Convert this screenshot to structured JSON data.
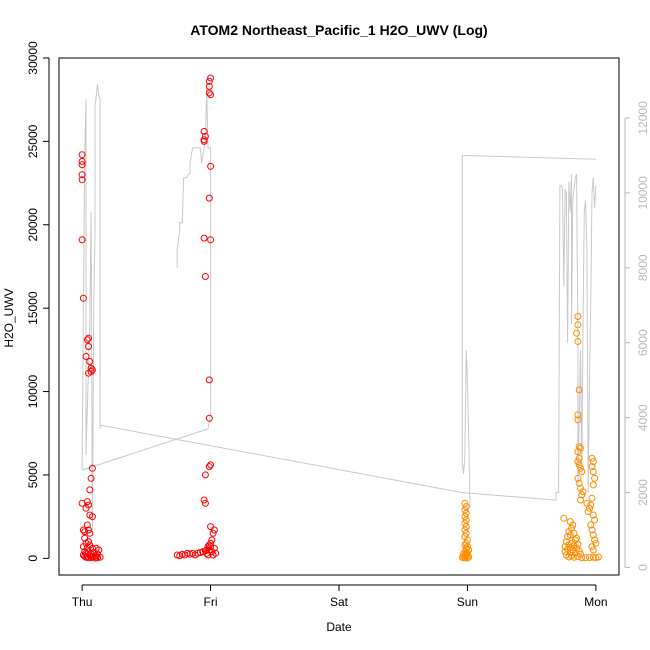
{
  "chart_data": {
    "type": "scatter",
    "title": "ATOM2 Northeast_Pacific_1 H2O_UWV (Log)",
    "xlabel": "Date",
    "ylabel": "H2O_UWV",
    "x_ticks": [
      {
        "label": "Thu",
        "day": 0
      },
      {
        "label": "Fri",
        "day": 1
      },
      {
        "label": "Sat",
        "day": 2
      },
      {
        "label": "Sun",
        "day": 3
      },
      {
        "label": "Mon",
        "day": 4
      }
    ],
    "xlim": [
      -0.18,
      4.18
    ],
    "ylim": [
      -1000,
      30000
    ],
    "y_ticks": [
      0,
      5000,
      10000,
      15000,
      20000,
      25000,
      30000
    ],
    "y2lim": [
      -200,
      13600
    ],
    "y2_ticks": [
      0,
      2000,
      4000,
      6000,
      8000,
      10000,
      12000
    ],
    "grid": false,
    "colors": {
      "red": "#ff0000",
      "orange": "#ff8c00",
      "secondary": "#c8c8c8",
      "axis": "#000000",
      "axis_right": "#b8b8b8"
    },
    "series": [
      {
        "color": "#ff0000",
        "points": [
          [
            0.0,
            24200
          ],
          [
            0.0,
            23800
          ],
          [
            0.0,
            23600
          ],
          [
            0.0,
            23000
          ],
          [
            0.0,
            22700
          ],
          [
            0.0,
            19100
          ],
          [
            0.01,
            15600
          ],
          [
            0.05,
            13200
          ],
          [
            0.04,
            13100
          ],
          [
            0.05,
            12700
          ],
          [
            0.03,
            12100
          ],
          [
            0.06,
            11800
          ],
          [
            0.07,
            11400
          ],
          [
            0.08,
            11300
          ],
          [
            0.07,
            11200
          ],
          [
            0.05,
            11100
          ],
          [
            0.08,
            5400
          ],
          [
            0.07,
            4800
          ],
          [
            0.06,
            4100
          ],
          [
            0.04,
            3400
          ],
          [
            0.05,
            3200
          ],
          [
            0.0,
            3300
          ],
          [
            0.03,
            3000
          ],
          [
            0.06,
            2600
          ],
          [
            0.08,
            2500
          ],
          [
            0.04,
            2000
          ],
          [
            0.05,
            1700
          ],
          [
            0.01,
            1700
          ],
          [
            0.02,
            1600
          ],
          [
            0.06,
            1500
          ],
          [
            0.02,
            1200
          ],
          [
            0.05,
            1000
          ],
          [
            0.03,
            900
          ],
          [
            0.06,
            800
          ],
          [
            0.01,
            700
          ],
          [
            0.04,
            600
          ],
          [
            0.08,
            600
          ],
          [
            0.11,
            600
          ],
          [
            0.13,
            500
          ],
          [
            0.02,
            400
          ],
          [
            0.05,
            400
          ],
          [
            0.09,
            350
          ],
          [
            0.03,
            300
          ],
          [
            0.07,
            250
          ],
          [
            0.12,
            250
          ],
          [
            0.01,
            200
          ],
          [
            0.06,
            180
          ],
          [
            0.1,
            150
          ],
          [
            0.02,
            120
          ],
          [
            0.04,
            100
          ],
          [
            0.08,
            90
          ],
          [
            0.11,
            80
          ],
          [
            0.14,
            70
          ],
          [
            0.03,
            60
          ],
          [
            0.07,
            50
          ],
          [
            0.12,
            40
          ],
          [
            0.05,
            30
          ],
          [
            0.1,
            20
          ],
          [
            0.74,
            200
          ],
          [
            0.76,
            150
          ],
          [
            0.78,
            250
          ],
          [
            0.8,
            200
          ],
          [
            0.82,
            300
          ],
          [
            0.84,
            250
          ],
          [
            0.86,
            300
          ],
          [
            0.88,
            200
          ],
          [
            0.9,
            300
          ],
          [
            0.92,
            350
          ],
          [
            0.94,
            400
          ],
          [
            0.96,
            450
          ],
          [
            0.97,
            500
          ],
          [
            0.98,
            700
          ],
          [
            0.99,
            800
          ],
          [
            1.0,
            900
          ],
          [
            1.01,
            1100
          ],
          [
            1.02,
            1500
          ],
          [
            1.03,
            1700
          ],
          [
            1.0,
            1900
          ],
          [
            0.97,
            300
          ],
          [
            0.98,
            200
          ],
          [
            1.02,
            200
          ],
          [
            1.04,
            300
          ],
          [
            1.01,
            400
          ],
          [
            0.99,
            500
          ],
          [
            1.03,
            600
          ],
          [
            1.0,
            700
          ],
          [
            0.95,
            3500
          ],
          [
            0.96,
            3300
          ],
          [
            0.96,
            5000
          ],
          [
            0.99,
            5500
          ],
          [
            1.0,
            5600
          ],
          [
            0.99,
            8400
          ],
          [
            0.99,
            10700
          ],
          [
            0.96,
            16900
          ],
          [
            0.95,
            19200
          ],
          [
            1.0,
            19100
          ],
          [
            0.99,
            21600
          ],
          [
            1.0,
            23500
          ],
          [
            0.95,
            25000
          ],
          [
            0.95,
            25600
          ],
          [
            0.96,
            25300
          ],
          [
            0.95,
            25100
          ],
          [
            0.99,
            27900
          ],
          [
            1.0,
            27800
          ],
          [
            0.99,
            28300
          ],
          [
            1.0,
            28800
          ],
          [
            0.99,
            28600
          ]
        ]
      },
      {
        "color": "#ff8c00",
        "points": [
          [
            2.98,
            3300
          ],
          [
            2.99,
            3100
          ],
          [
            2.98,
            2900
          ],
          [
            2.99,
            2700
          ],
          [
            2.98,
            2500
          ],
          [
            2.99,
            2300
          ],
          [
            2.98,
            2100
          ],
          [
            2.99,
            1900
          ],
          [
            2.98,
            1700
          ],
          [
            2.99,
            1500
          ],
          [
            2.98,
            1300
          ],
          [
            3.0,
            1100
          ],
          [
            2.99,
            900
          ],
          [
            2.98,
            800
          ],
          [
            3.0,
            700
          ],
          [
            2.99,
            600
          ],
          [
            3.01,
            500
          ],
          [
            2.98,
            400
          ],
          [
            3.0,
            350
          ],
          [
            2.99,
            300
          ],
          [
            2.97,
            250
          ],
          [
            3.0,
            200
          ],
          [
            2.98,
            150
          ],
          [
            2.99,
            100
          ],
          [
            3.01,
            80
          ],
          [
            2.96,
            60
          ],
          [
            2.98,
            40
          ],
          [
            3.0,
            20
          ],
          [
            2.97,
            30
          ],
          [
            3.75,
            2400
          ],
          [
            3.8,
            2200
          ],
          [
            3.82,
            2000
          ],
          [
            3.81,
            1800
          ],
          [
            3.79,
            1600
          ],
          [
            3.83,
            1500
          ],
          [
            3.8,
            1400
          ],
          [
            3.78,
            1300
          ],
          [
            3.85,
            1200
          ],
          [
            3.84,
            1100
          ],
          [
            3.77,
            1000
          ],
          [
            3.81,
            900
          ],
          [
            3.86,
            850
          ],
          [
            3.79,
            800
          ],
          [
            3.83,
            750
          ],
          [
            3.76,
            700
          ],
          [
            3.8,
            650
          ],
          [
            3.85,
            600
          ],
          [
            3.78,
            550
          ],
          [
            3.82,
            500
          ],
          [
            3.87,
            450
          ],
          [
            3.76,
            400
          ],
          [
            3.8,
            350
          ],
          [
            3.84,
            300
          ],
          [
            3.88,
            250
          ],
          [
            3.77,
            200
          ],
          [
            3.81,
            150
          ],
          [
            3.86,
            100
          ],
          [
            3.79,
            80
          ],
          [
            3.83,
            60
          ],
          [
            3.89,
            40
          ],
          [
            3.92,
            30
          ],
          [
            3.95,
            50
          ],
          [
            3.98,
            60
          ],
          [
            4.0,
            40
          ],
          [
            4.02,
            80
          ],
          [
            3.86,
            14500
          ],
          [
            3.86,
            14000
          ],
          [
            3.85,
            13500
          ],
          [
            3.86,
            13000
          ],
          [
            3.87,
            10100
          ],
          [
            3.86,
            8600
          ],
          [
            3.86,
            8300
          ],
          [
            3.87,
            6700
          ],
          [
            3.88,
            6600
          ],
          [
            3.86,
            6400
          ],
          [
            3.87,
            6000
          ],
          [
            3.86,
            5800
          ],
          [
            3.87,
            5600
          ],
          [
            3.88,
            5400
          ],
          [
            3.89,
            5200
          ],
          [
            3.86,
            4800
          ],
          [
            3.87,
            4500
          ],
          [
            3.88,
            4200
          ],
          [
            3.9,
            4000
          ],
          [
            3.89,
            3800
          ],
          [
            3.88,
            3500
          ],
          [
            3.93,
            3300
          ],
          [
            3.95,
            3000
          ],
          [
            3.94,
            2800
          ],
          [
            3.97,
            6000
          ],
          [
            3.98,
            5800
          ],
          [
            3.97,
            5500
          ],
          [
            3.98,
            5200
          ],
          [
            3.99,
            4800
          ],
          [
            3.98,
            4400
          ],
          [
            3.97,
            3600
          ],
          [
            3.96,
            3200
          ],
          [
            3.98,
            2600
          ],
          [
            3.99,
            2300
          ],
          [
            3.96,
            2000
          ],
          [
            3.97,
            1700
          ],
          [
            3.98,
            1400
          ],
          [
            3.99,
            1100
          ],
          [
            4.0,
            900
          ],
          [
            3.97,
            700
          ],
          [
            3.98,
            500
          ]
        ]
      }
    ],
    "secondary_line": {
      "axis": "right",
      "segments": [
        [
          [
            0.0,
            2600
          ],
          [
            0.0,
            2700
          ],
          [
            0.02,
            11000
          ],
          [
            0.03,
            12500
          ],
          [
            0.03,
            3000
          ],
          [
            0.06,
            6500
          ],
          [
            0.07,
            9500
          ],
          [
            0.08,
            1000
          ],
          [
            0.09,
            7000
          ],
          [
            0.1,
            9000
          ],
          [
            0.1,
            11000
          ],
          [
            0.1,
            12300
          ],
          [
            0.12,
            12900
          ],
          [
            0.13,
            12600
          ],
          [
            0.14,
            12500
          ],
          [
            0.14,
            3800
          ],
          [
            0.14,
            3700
          ]
        ],
        [
          [
            0.0,
            2600
          ],
          [
            0.98,
            3700
          ],
          [
            0.99,
            3900
          ],
          [
            1.0,
            3900
          ]
        ],
        [
          [
            0.14,
            3800
          ],
          [
            2.96,
            2000
          ]
        ],
        [
          [
            0.74,
            8000
          ],
          [
            0.74,
            8500
          ],
          [
            0.76,
            9000
          ],
          [
            0.76,
            9200
          ],
          [
            0.78,
            9200
          ],
          [
            0.79,
            10400
          ],
          [
            0.81,
            10400
          ],
          [
            0.83,
            10500
          ],
          [
            0.84,
            10500
          ],
          [
            0.84,
            10800
          ],
          [
            0.85,
            11000
          ],
          [
            0.86,
            11200
          ],
          [
            0.9,
            11200
          ],
          [
            0.92,
            11200
          ],
          [
            0.93,
            10800
          ],
          [
            0.96,
            11400
          ],
          [
            0.97,
            12800
          ],
          [
            0.98,
            11200
          ],
          [
            1.0,
            11200
          ],
          [
            1.0,
            4100
          ],
          [
            0.99,
            3900
          ]
        ],
        [
          [
            2.96,
            11000
          ],
          [
            2.96,
            2800
          ],
          [
            2.97,
            2500
          ],
          [
            2.98,
            3000
          ],
          [
            2.99,
            5800
          ],
          [
            3.0,
            5000
          ],
          [
            3.01,
            3500
          ],
          [
            3.02,
            1600
          ]
        ],
        [
          [
            2.96,
            11000
          ],
          [
            4.0,
            10900
          ]
        ],
        [
          [
            2.96,
            2000
          ],
          [
            3.69,
            1800
          ],
          [
            3.69,
            2000
          ],
          [
            3.71,
            2000
          ],
          [
            3.72,
            10200
          ],
          [
            3.73,
            10200
          ],
          [
            3.74,
            10100
          ],
          [
            3.75,
            7500
          ],
          [
            3.76,
            10100
          ],
          [
            3.77,
            10000
          ],
          [
            3.78,
            6000
          ],
          [
            3.79,
            10300
          ],
          [
            3.8,
            9500
          ],
          [
            3.81,
            10500
          ],
          [
            3.81,
            6500
          ],
          [
            3.82,
            9800
          ],
          [
            3.84,
            10400
          ],
          [
            3.85,
            10500
          ],
          [
            3.86,
            6000
          ],
          [
            3.86,
            2200
          ],
          [
            3.88,
            5800
          ],
          [
            3.89,
            2500
          ],
          [
            3.9,
            6500
          ],
          [
            3.91,
            9500
          ],
          [
            3.92,
            9800
          ],
          [
            3.93,
            8500
          ],
          [
            3.94,
            2000
          ],
          [
            3.95,
            5000
          ],
          [
            3.96,
            7000
          ],
          [
            3.97,
            10000
          ],
          [
            3.98,
            10400
          ],
          [
            3.99,
            9600
          ],
          [
            4.0,
            10200
          ]
        ]
      ]
    }
  }
}
